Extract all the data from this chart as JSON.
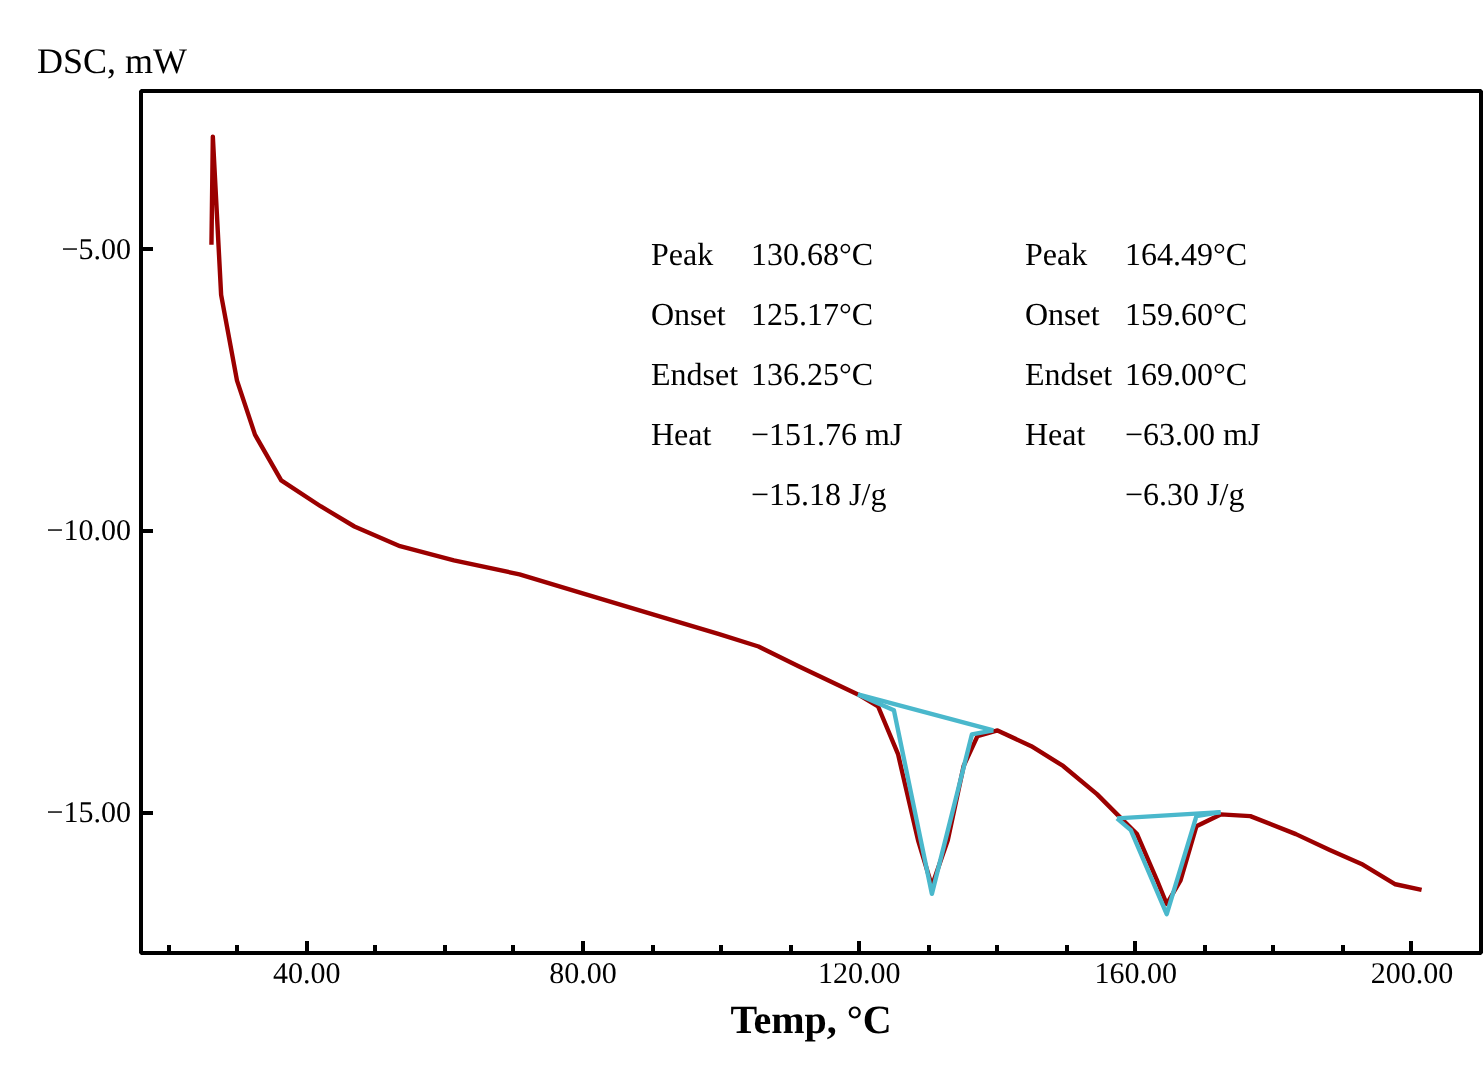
{
  "chart_data": {
    "type": "line",
    "xlabel": "Temp, °C",
    "ylabel": "DSC, mW",
    "xlim": [
      16,
      210
    ],
    "ylim": [
      -17.5,
      -2.2
    ],
    "xticks": [
      {
        "value": 40,
        "label": "40.00"
      },
      {
        "value": 80,
        "label": "80.00"
      },
      {
        "value": 120,
        "label": "120.00"
      },
      {
        "value": 160,
        "label": "160.00"
      },
      {
        "value": 200,
        "label": "200.00"
      }
    ],
    "yticks": [
      {
        "value": -5,
        "label": "−5.00"
      },
      {
        "value": -10,
        "label": "−10.00"
      },
      {
        "value": -15,
        "label": "−15.00"
      }
    ],
    "grid": false,
    "marker": "none",
    "line_style": "solid",
    "series": [
      {
        "color": "#9b0000",
        "x": [
          26.2,
          26.4,
          27.6,
          29.9,
          32.5,
          36.3,
          42.0,
          46.9,
          53.5,
          61.3,
          70.8,
          80.3,
          90.1,
          99.7,
          105.4,
          111.2,
          119.8,
          122.7,
          125.6,
          128.5,
          130.5,
          132.8,
          135.1,
          137.1,
          140.0,
          144.9,
          149.5,
          154.4,
          157.9,
          160.2,
          163.1,
          164.5,
          166.5,
          168.8,
          172.3,
          176.6,
          183.2,
          188.1,
          192.7,
          197.6,
          201.4
        ],
        "values": [
          -4.93,
          -3.01,
          -5.82,
          -7.34,
          -8.3,
          -9.11,
          -9.57,
          -9.93,
          -10.28,
          -10.53,
          -10.78,
          -11.13,
          -11.49,
          -11.84,
          -12.06,
          -12.41,
          -12.91,
          -13.12,
          -13.97,
          -15.5,
          -16.31,
          -15.5,
          -14.18,
          -13.65,
          -13.55,
          -13.83,
          -14.18,
          -14.68,
          -15.11,
          -15.39,
          -16.21,
          -16.63,
          -16.21,
          -15.25,
          -15.04,
          -15.07,
          -15.39,
          -15.67,
          -15.92,
          -16.28,
          -16.38
        ]
      },
      {
        "color": "#4ab8cc",
        "x": [
          119.8,
          125.0,
          130.5,
          136.3,
          139.4
        ],
        "values": [
          -12.91,
          -13.19,
          -16.45,
          -13.62,
          -13.55
        ]
      },
      {
        "color": "#4ab8cc",
        "x": [
          119.8,
          139.4
        ],
        "values": [
          -12.91,
          -13.55
        ]
      },
      {
        "color": "#4ab8cc",
        "x": [
          157.3,
          159.3,
          164.5,
          168.8,
          172.3
        ],
        "values": [
          -15.11,
          -15.32,
          -16.81,
          -15.07,
          -15.0
        ]
      },
      {
        "color": "#4ab8cc",
        "x": [
          157.3,
          172.3
        ],
        "values": [
          -15.11,
          -15.0
        ]
      }
    ],
    "annotations": [
      "Peak",
      "Onset",
      "Endset",
      "Heat",
      "130.68°C",
      "125.17°C",
      "136.25°C",
      "−151.76 mJ",
      "−15.18 J/g",
      "Peak",
      "Onset",
      "Endset",
      "Heat",
      "164.49°C",
      "159.60°C",
      "169.00°C",
      "−63.00 mJ",
      "−6.30 J/g"
    ]
  }
}
